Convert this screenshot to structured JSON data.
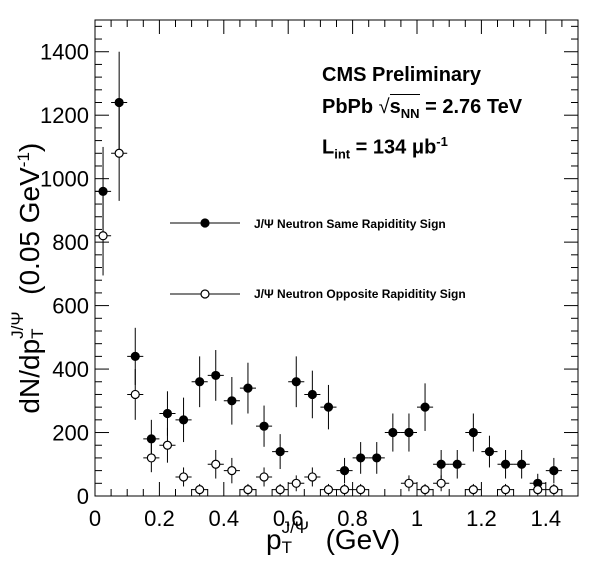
{
  "chart_data": {
    "type": "scatter",
    "title": "",
    "xlabel_main": "p",
    "xlabel_sub": "T",
    "xlabel_sup": "J/Ψ",
    "xlabel_unit": "(GeV)",
    "ylabel_main": "dN/dp",
    "ylabel_sub": "T",
    "ylabel_sup": "J/Ψ",
    "ylabel_unit": "(0.05 GeV",
    "ylabel_unit_sup": "-1",
    "ylabel_close": ")",
    "xlim": [
      0,
      1.5
    ],
    "ylim": [
      0,
      1500
    ],
    "x_ticks": [
      0,
      0.2,
      0.4,
      0.6,
      0.8,
      1,
      1.2,
      1.4
    ],
    "x_tick_labels": [
      "0",
      "0.2",
      "0.4",
      "0.6",
      "0.8",
      "1",
      "1.2",
      "1.4"
    ],
    "y_ticks": [
      0,
      200,
      400,
      600,
      800,
      1000,
      1200,
      1400
    ],
    "y_tick_labels": [
      "0",
      "200",
      "400",
      "600",
      "800",
      "1000",
      "1200",
      "1400"
    ],
    "annotations": {
      "line1": "CMS Preliminary",
      "line2_pre": "PbPb ",
      "line2_sqrt_s": "s",
      "line2_sqrt_sub": "NN",
      "line2_post": " = 2.76 TeV",
      "line3_L": "L",
      "line3_L_sub": "int",
      "line3_value": " = 134 μb",
      "line3_sup": "-1"
    },
    "legend": {
      "placement": "center-right",
      "entries": [
        "J/Ψ Neutron Same Rapiditity Sign",
        "J/Ψ Neutron Opposite Rapiditity Sign"
      ]
    },
    "series": [
      {
        "name": "J/Ψ Neutron Same Rapiditity Sign",
        "marker": "filled-circle",
        "x_err": 0.025,
        "x": [
          0.025,
          0.075,
          0.125,
          0.175,
          0.225,
          0.275,
          0.325,
          0.375,
          0.425,
          0.475,
          0.525,
          0.575,
          0.625,
          0.675,
          0.725,
          0.775,
          0.825,
          0.875,
          0.925,
          0.975,
          1.025,
          1.075,
          1.125,
          1.175,
          1.225,
          1.275,
          1.325,
          1.375,
          1.425
        ],
        "y": [
          960,
          1240,
          440,
          180,
          260,
          240,
          360,
          380,
          300,
          340,
          220,
          140,
          360,
          320,
          280,
          80,
          120,
          120,
          200,
          200,
          280,
          100,
          100,
          200,
          140,
          100,
          100,
          40,
          80
        ],
        "y_err": [
          140,
          160,
          90,
          60,
          70,
          70,
          80,
          80,
          75,
          80,
          65,
          55,
          80,
          75,
          70,
          40,
          50,
          50,
          60,
          60,
          75,
          45,
          45,
          60,
          50,
          45,
          45,
          30,
          40
        ]
      },
      {
        "name": "J/Ψ Neutron Opposite Rapiditity Sign",
        "marker": "open-circle",
        "x_err": 0.025,
        "x": [
          0.025,
          0.075,
          0.125,
          0.175,
          0.225,
          0.275,
          0.325,
          0.375,
          0.425,
          0.475,
          0.525,
          0.575,
          0.625,
          0.675,
          0.725,
          0.775,
          0.825,
          0.975,
          1.025,
          1.075,
          1.175,
          1.275,
          1.375,
          1.425
        ],
        "y": [
          820,
          1080,
          320,
          120,
          160,
          60,
          20,
          100,
          80,
          20,
          60,
          20,
          40,
          60,
          20,
          20,
          20,
          40,
          20,
          40,
          20,
          20,
          20,
          20
        ],
        "y_err": [
          125,
          150,
          80,
          45,
          55,
          30,
          18,
          45,
          40,
          18,
          30,
          18,
          25,
          30,
          18,
          18,
          18,
          25,
          18,
          25,
          18,
          18,
          18,
          18
        ]
      }
    ]
  }
}
